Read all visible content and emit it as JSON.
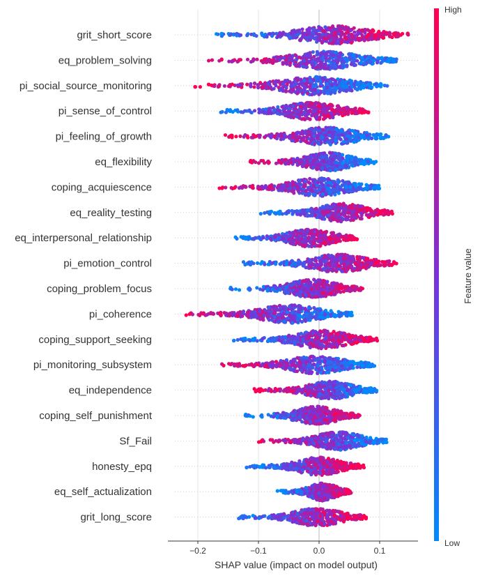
{
  "chart_data": {
    "type": "scatter",
    "subtype": "shap-beeswarm-summary",
    "xlabel": "SHAP value (impact on model output)",
    "xticks": [
      -0.2,
      -0.1,
      0.0,
      0.1
    ],
    "xtick_labels": [
      "−0.2",
      "−0.1",
      "0.0",
      "0.1"
    ],
    "xlim": [
      -0.235,
      0.165
    ],
    "grid": true,
    "colorbar": {
      "title": "Feature value",
      "high_label": "High",
      "low_label": "Low",
      "low_color": "#008afb",
      "high_color": "#ff0052"
    },
    "features": [
      {
        "name": "grit_short_score",
        "min": -0.175,
        "max": 0.148,
        "high_side": "positive"
      },
      {
        "name": "eq_problem_solving",
        "min": -0.183,
        "max": 0.13,
        "high_side": "negative"
      },
      {
        "name": "pi_social_source_monitoring",
        "min": -0.205,
        "max": 0.115,
        "high_side": "negative"
      },
      {
        "name": "pi_sense_of_control",
        "min": -0.165,
        "max": 0.082,
        "high_side": "positive"
      },
      {
        "name": "pi_feeling_of_growth",
        "min": -0.155,
        "max": 0.115,
        "high_side": "negative"
      },
      {
        "name": "eq_flexibility",
        "min": -0.115,
        "max": 0.095,
        "high_side": "negative"
      },
      {
        "name": "coping_acquiescence",
        "min": -0.165,
        "max": 0.1,
        "high_side": "negative"
      },
      {
        "name": "eq_reality_testing",
        "min": -0.1,
        "max": 0.122,
        "high_side": "positive"
      },
      {
        "name": "eq_interpersonal_relationship",
        "min": -0.14,
        "max": 0.063,
        "high_side": "positive"
      },
      {
        "name": "pi_emotion_control",
        "min": -0.125,
        "max": 0.128,
        "high_side": "positive"
      },
      {
        "name": "coping_problem_focus",
        "min": -0.148,
        "max": 0.073,
        "high_side": "positive"
      },
      {
        "name": "pi_coherence",
        "min": -0.22,
        "max": 0.055,
        "high_side": "negative"
      },
      {
        "name": "coping_support_seeking",
        "min": -0.145,
        "max": 0.097,
        "high_side": "positive"
      },
      {
        "name": "pi_monitoring_subsystem",
        "min": -0.163,
        "max": 0.092,
        "high_side": "negative"
      },
      {
        "name": "eq_independence",
        "min": -0.107,
        "max": 0.095,
        "high_side": "negative"
      },
      {
        "name": "coping_self_punishment",
        "min": -0.123,
        "max": 0.068,
        "high_side": "positive"
      },
      {
        "name": "Sf_Fail",
        "min": -0.1,
        "max": 0.112,
        "high_side": "negative"
      },
      {
        "name": "honesty_epq",
        "min": -0.123,
        "max": 0.075,
        "high_side": "positive"
      },
      {
        "name": "eq_self_actualization",
        "min": -0.07,
        "max": 0.053,
        "high_side": "positive"
      },
      {
        "name": "grit_long_score",
        "min": -0.135,
        "max": 0.078,
        "high_side": "positive"
      }
    ]
  }
}
